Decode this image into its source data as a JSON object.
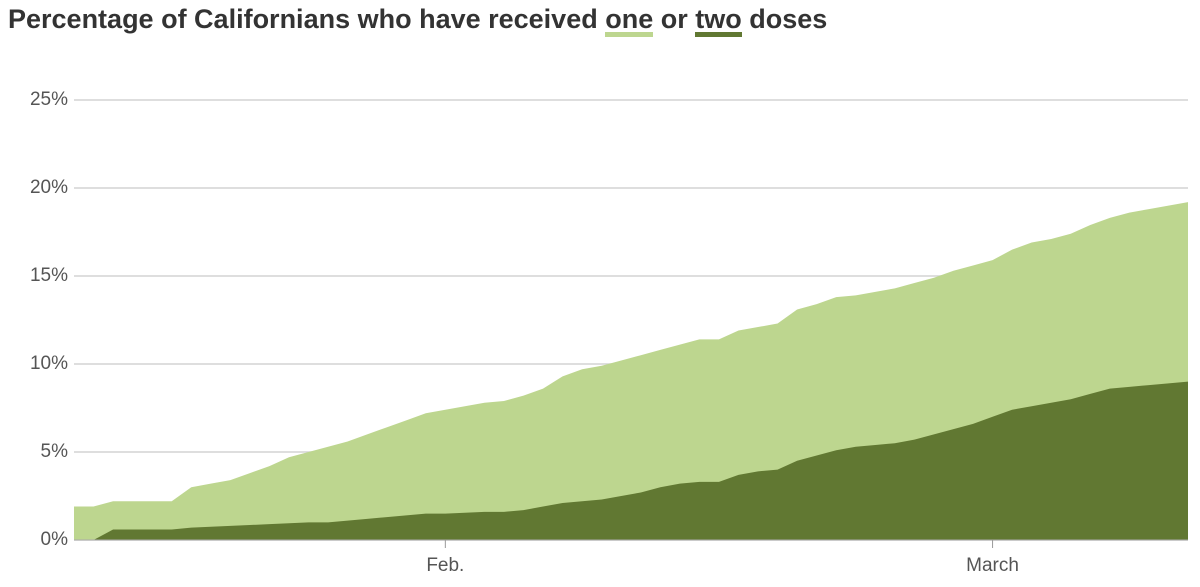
{
  "chart_data": {
    "type": "area",
    "title": "Percentage of Californians who have received",
    "title_joiner": "or",
    "title_end": "doses",
    "categories": [
      null,
      null,
      null,
      null,
      null,
      null,
      null,
      null,
      null,
      null,
      null,
      null,
      null,
      null,
      null,
      null,
      null,
      null,
      null,
      "Feb.",
      null,
      null,
      null,
      null,
      null,
      null,
      null,
      null,
      null,
      null,
      null,
      null,
      null,
      null,
      null,
      null,
      null,
      null,
      null,
      null,
      null,
      null,
      null,
      null,
      null,
      null,
      null,
      "March",
      null,
      null,
      null,
      null,
      null,
      null,
      null,
      null,
      null,
      null
    ],
    "series": [
      {
        "name": "one",
        "color": "#bdd68f",
        "values": [
          1.9,
          1.9,
          2.2,
          2.2,
          2.2,
          2.2,
          3.0,
          3.2,
          3.4,
          3.8,
          4.2,
          4.7,
          5.0,
          5.3,
          5.6,
          6.0,
          6.4,
          6.8,
          7.2,
          7.4,
          7.6,
          7.8,
          7.9,
          8.2,
          8.6,
          9.3,
          9.7,
          9.9,
          10.2,
          10.5,
          10.8,
          11.1,
          11.4,
          11.4,
          11.9,
          12.1,
          12.3,
          13.1,
          13.4,
          13.8,
          13.9,
          14.1,
          14.3,
          14.6,
          14.9,
          15.3,
          15.6,
          15.9,
          16.5,
          16.9,
          17.1,
          17.4,
          17.9,
          18.3,
          18.6,
          18.8,
          19.0,
          19.2
        ]
      },
      {
        "name": "two",
        "color": "#617832",
        "values": [
          null,
          0,
          0.6,
          0.6,
          0.6,
          0.6,
          0.7,
          0.75,
          0.8,
          0.85,
          0.9,
          0.95,
          1.0,
          1.0,
          1.1,
          1.2,
          1.3,
          1.4,
          1.5,
          1.5,
          1.55,
          1.6,
          1.6,
          1.7,
          1.9,
          2.1,
          2.2,
          2.3,
          2.5,
          2.7,
          3.0,
          3.2,
          3.3,
          3.3,
          3.7,
          3.9,
          4.0,
          4.5,
          4.8,
          5.1,
          5.3,
          5.4,
          5.5,
          5.7,
          6.0,
          6.3,
          6.6,
          7.0,
          7.4,
          7.6,
          7.8,
          8.0,
          8.3,
          8.6,
          8.7,
          8.8,
          8.9,
          9.0
        ]
      }
    ],
    "ylim": [
      0,
      25
    ],
    "yticks": [
      {
        "value": 0,
        "label": "0%"
      },
      {
        "value": 5,
        "label": "5%"
      },
      {
        "value": 10,
        "label": "10%"
      },
      {
        "value": 15,
        "label": "15%"
      },
      {
        "value": 20,
        "label": "20%"
      },
      {
        "value": 25,
        "label": "25%"
      }
    ],
    "grid": true
  }
}
